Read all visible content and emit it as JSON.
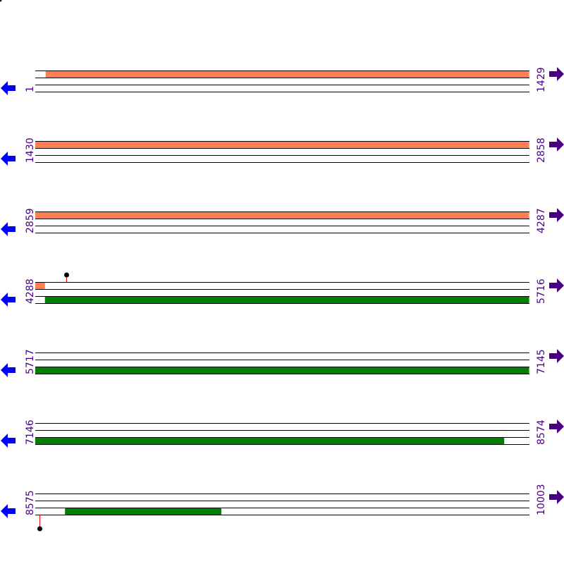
{
  "map": {
    "row_length_bp": 1429,
    "rows": [
      {
        "start": "1",
        "end": "1429"
      },
      {
        "start": "1430",
        "end": "2858"
      },
      {
        "start": "2859",
        "end": "4287"
      },
      {
        "start": "4288",
        "end": "5716"
      },
      {
        "start": "5717",
        "end": "7145"
      },
      {
        "start": "7146",
        "end": "8574"
      },
      {
        "start": "8575",
        "end": "10003"
      }
    ],
    "features": [
      {
        "start": 31,
        "end": 4316,
        "track": "top",
        "color": "#ff7f50"
      },
      {
        "start": 4316,
        "end": 8502,
        "track": "bottom",
        "color": "#008000"
      },
      {
        "start": 8661,
        "end": 9113,
        "track": "bottom",
        "color": "#008000"
      }
    ],
    "markers": [
      {
        "position": 4378,
        "side": "above",
        "color": "#ff0000"
      },
      {
        "position": 8587,
        "side": "below",
        "color": "#ff0000"
      }
    ],
    "icons": {
      "left": "arrow-left-icon",
      "right": "arrow-right-icon"
    },
    "colors": {
      "left_arrow": "#0000ff",
      "right_arrow": "#4b0082",
      "label": "#4b0082"
    }
  }
}
